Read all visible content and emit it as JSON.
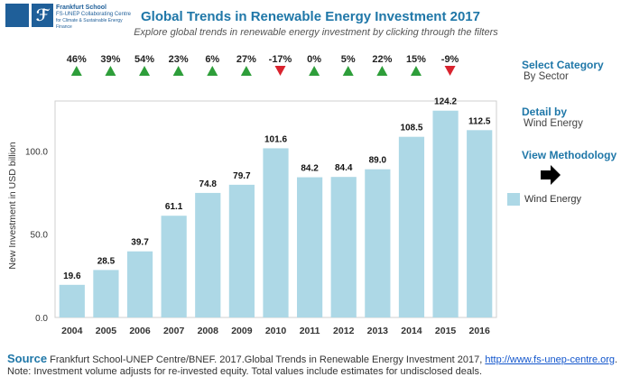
{
  "logo": {
    "line1": "Frankfurt School",
    "line2": "FS-UNEP Collaborating Centre",
    "line3": "for Climate & Sustainable Energy Finance"
  },
  "header": {
    "title": "Global Trends in Renewable Energy Investment 2017",
    "subtitle": "Explore global trends in renewable energy investment by clicking through the filters"
  },
  "side": {
    "category_label": "Select Category",
    "category_value": "By Sector",
    "detail_label": "Detail by",
    "detail_value": "Wind Energy",
    "methodology_label": "View Methodology"
  },
  "footer": {
    "source_label": "Source",
    "source_text": "Frankfurt School-UNEP Centre/BNEF. 2017.Global Trends in Renewable Energy Investment 2017,",
    "source_link": "http://www.fs-unep-centre.org",
    "note": "Note: Investment volume adjusts for re-invested equity. Total values include estimates for undisclosed deals."
  },
  "colors": {
    "bar": "#add8e6",
    "up": "#2e9e3a",
    "down": "#d9232e",
    "accent": "#1f77a8"
  },
  "chart_data": {
    "type": "bar",
    "categories": [
      "2004",
      "2005",
      "2006",
      "2007",
      "2008",
      "2009",
      "2010",
      "2011",
      "2012",
      "2013",
      "2014",
      "2015",
      "2016"
    ],
    "series": [
      {
        "name": "Wind Energy",
        "values": [
          19.6,
          28.5,
          39.7,
          61.1,
          74.8,
          79.7,
          101.6,
          84.2,
          84.4,
          89.0,
          108.5,
          124.2,
          112.5
        ]
      }
    ],
    "data_labels": [
      "19.6",
      "28.5",
      "39.7",
      "61.1",
      "74.8",
      "79.7",
      "101.6",
      "84.2",
      "84.4",
      "89.0",
      "108.5",
      "124.2",
      "112.5"
    ],
    "growth": [
      {
        "label": "46%",
        "dir": "up"
      },
      {
        "label": "39%",
        "dir": "up"
      },
      {
        "label": "54%",
        "dir": "up"
      },
      {
        "label": "23%",
        "dir": "up"
      },
      {
        "label": "6%",
        "dir": "up"
      },
      {
        "label": "27%",
        "dir": "up"
      },
      {
        "label": "-17%",
        "dir": "down"
      },
      {
        "label": "0%",
        "dir": "up"
      },
      {
        "label": "5%",
        "dir": "up"
      },
      {
        "label": "22%",
        "dir": "up"
      },
      {
        "label": "15%",
        "dir": "up"
      },
      {
        "label": "-9%",
        "dir": "down"
      }
    ],
    "ylabel": "New Investment in USD billion",
    "yticks": [
      "0.0",
      "50.0",
      "100.0"
    ],
    "ylim": [
      0,
      130
    ],
    "grid": false,
    "legend": "right"
  }
}
